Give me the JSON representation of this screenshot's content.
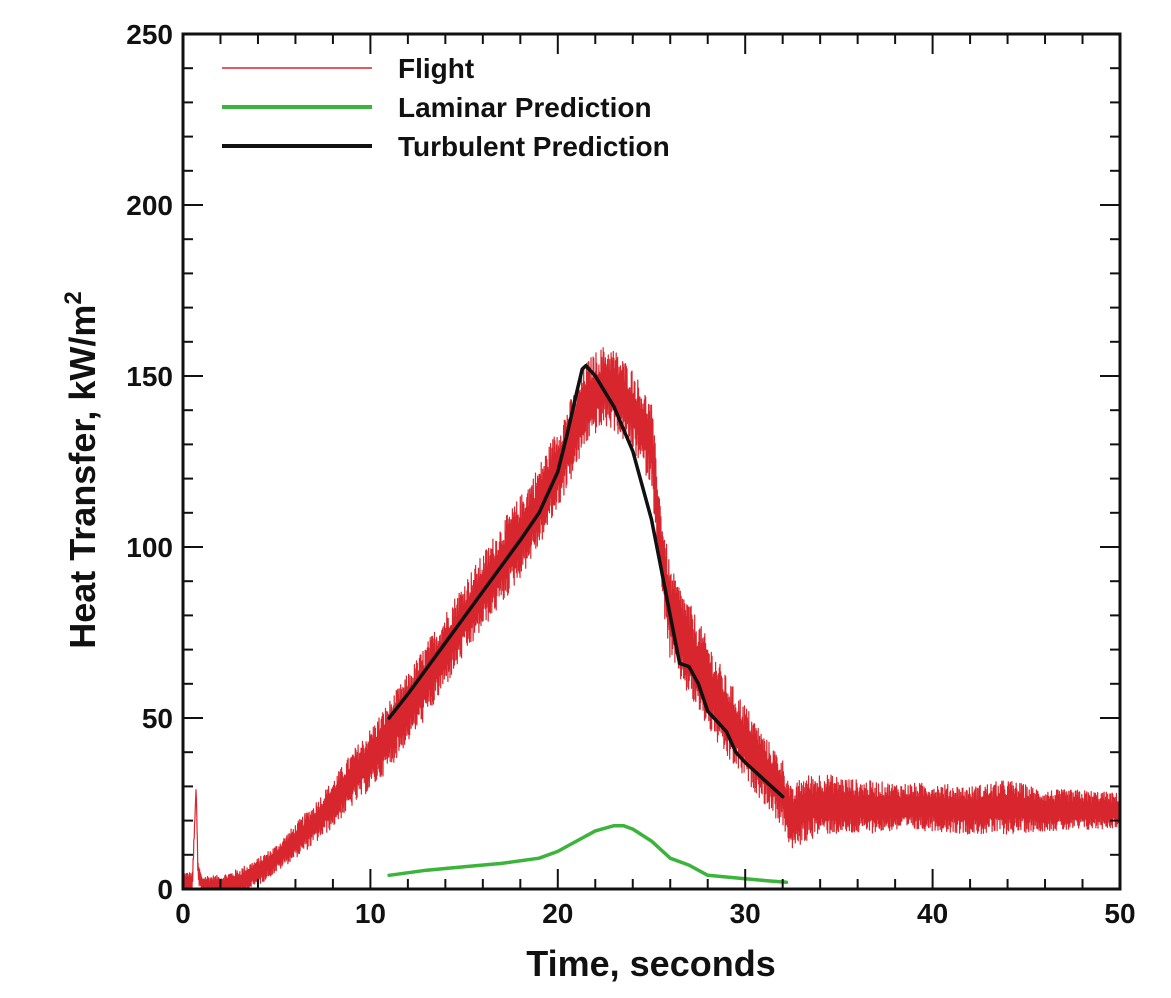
{
  "chart_data": {
    "type": "line",
    "title": "",
    "xlabel": "Time, seconds",
    "ylabel": "Heat Transfer, kW/m",
    "ylabel_superscript": "2",
    "xlim": [
      0,
      50
    ],
    "ylim": [
      0,
      250
    ],
    "x_ticks": [
      0,
      10,
      20,
      30,
      40,
      50
    ],
    "y_ticks": [
      0,
      50,
      100,
      150,
      200,
      250
    ],
    "x_tick_labels": [
      "0",
      "10",
      "20",
      "30",
      "40",
      "50"
    ],
    "y_tick_labels": [
      "0",
      "50",
      "100",
      "150",
      "200",
      "250"
    ],
    "grid": false,
    "legend_position": "top-left",
    "series": [
      {
        "name": "Flight",
        "color": "#d7262e",
        "style": "noisy-thin",
        "x": [
          0,
          0.5,
          0.7,
          0.8,
          1,
          2,
          3,
          4,
          5,
          6,
          7,
          8,
          9,
          10,
          11,
          12,
          13,
          14,
          15,
          16,
          17,
          18,
          19,
          20,
          21,
          21.5,
          22,
          22.5,
          23,
          24,
          25,
          25.5,
          26,
          27,
          28,
          29,
          30,
          31,
          32,
          32.5,
          33,
          34,
          36,
          38,
          40,
          42,
          44,
          46,
          48,
          50
        ],
        "y": [
          2,
          2,
          30,
          5,
          1,
          1,
          2,
          5,
          9,
          14,
          19,
          25,
          32,
          38,
          45,
          53,
          61,
          70,
          79,
          87,
          95,
          103,
          112,
          123,
          135,
          142,
          145,
          147,
          146,
          140,
          130,
          100,
          80,
          70,
          60,
          50,
          43,
          35,
          28,
          20,
          23,
          25,
          24,
          24,
          24,
          23,
          24,
          23,
          23,
          23
        ],
        "noise_amplitude": [
          3,
          3,
          0,
          3,
          3,
          3,
          4,
          4,
          4,
          5,
          6,
          7,
          8,
          9,
          10,
          10,
          11,
          11,
          11,
          11,
          12,
          12,
          12,
          12,
          12,
          12,
          12,
          12,
          12,
          12,
          12,
          12,
          14,
          14,
          13,
          12,
          11,
          10,
          10,
          9,
          10,
          9,
          8,
          7,
          7,
          7,
          8,
          6,
          6,
          5
        ]
      },
      {
        "name": "Laminar Prediction",
        "color": "#3cb43c",
        "style": "thick",
        "x": [
          11,
          13,
          15,
          17,
          19,
          20,
          21,
          22,
          23,
          23.5,
          24,
          25,
          26,
          27,
          28,
          29,
          30,
          31,
          32.2
        ],
        "y": [
          4,
          5.5,
          6.5,
          7.5,
          9,
          11,
          14,
          17,
          18.5,
          18.5,
          17.5,
          14,
          9,
          7,
          4,
          3.5,
          3,
          2.5,
          2
        ]
      },
      {
        "name": "Turbulent Prediction",
        "color": "#111111",
        "style": "thick",
        "x": [
          11,
          12,
          14,
          16,
          18,
          19,
          20,
          20.5,
          21,
          21.3,
          21.5,
          22,
          23,
          24,
          25,
          25.5,
          26,
          26.5,
          27,
          27.5,
          28,
          29,
          29.5,
          30,
          31,
          32
        ],
        "y": [
          50,
          57,
          72,
          87,
          102,
          110,
          122,
          133,
          145,
          152,
          153,
          150,
          141,
          128,
          108,
          94,
          80,
          66,
          65,
          60,
          52,
          46,
          40,
          37,
          32,
          27
        ]
      }
    ]
  }
}
